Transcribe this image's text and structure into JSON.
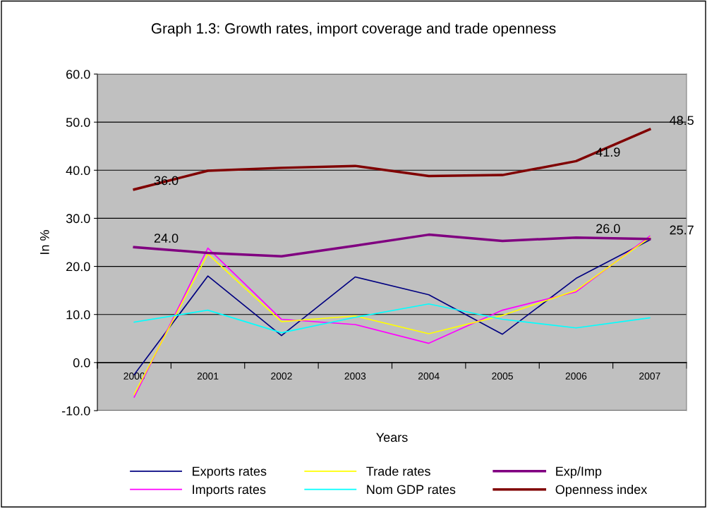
{
  "chart_data": {
    "type": "line",
    "title": "Graph 1.3: Growth rates, import coverage and trade openness",
    "xlabel": "Years",
    "ylabel": "In %",
    "categories": [
      "2000",
      "2001",
      "2002",
      "2003",
      "2004",
      "2005",
      "2006",
      "2007"
    ],
    "series": [
      {
        "name": "Exports rates",
        "color": "#000080",
        "values": [
          -2.5,
          18.0,
          5.6,
          17.8,
          14.1,
          5.9,
          17.5,
          25.5
        ]
      },
      {
        "name": "Imports rates",
        "color": "#ff00ff",
        "values": [
          -7.2,
          23.8,
          9.0,
          7.9,
          4.0,
          10.9,
          14.7,
          26.3
        ]
      },
      {
        "name": "Trade rates",
        "color": "#ffff00",
        "values": [
          -6.6,
          22.6,
          8.5,
          9.7,
          6.0,
          9.8,
          15.0,
          26.0
        ]
      },
      {
        "name": "Nom GDP rates",
        "color": "#00ffff",
        "values": [
          8.4,
          10.9,
          6.2,
          9.4,
          12.2,
          9.0,
          7.2,
          9.3
        ]
      },
      {
        "name": "Exp/Imp",
        "color": "#800080",
        "values": [
          24.0,
          22.8,
          22.1,
          24.3,
          26.6,
          25.3,
          26.0,
          25.7
        ]
      },
      {
        "name": "Openness index",
        "color": "#800000",
        "values": [
          36.0,
          39.9,
          40.5,
          40.9,
          38.8,
          39.0,
          41.9,
          48.5
        ]
      }
    ],
    "annotations": [
      {
        "text": "36.0",
        "x": "2000",
        "y": 36.0
      },
      {
        "text": "41.9",
        "x": "2006",
        "y": 41.9
      },
      {
        "text": "48.5",
        "x": "2007",
        "y": 48.5
      },
      {
        "text": "24.0",
        "x": "2000",
        "y": 24.0
      },
      {
        "text": "26.0",
        "x": "2006",
        "y": 26.0
      },
      {
        "text": "25.7",
        "x": "2007",
        "y": 25.7
      }
    ],
    "ylim": [
      -10,
      60
    ],
    "yticks": [
      {
        "value": -10,
        "label": "-10.0"
      },
      {
        "value": 0,
        "label": "0.0"
      },
      {
        "value": 10,
        "label": "10.0"
      },
      {
        "value": 20,
        "label": "20.0"
      },
      {
        "value": 30,
        "label": "30.0"
      },
      {
        "value": 40,
        "label": "40.0"
      },
      {
        "value": 50,
        "label": "50.0"
      },
      {
        "value": 60,
        "label": "60.0"
      }
    ],
    "grid": "y",
    "legend": "bottom"
  }
}
